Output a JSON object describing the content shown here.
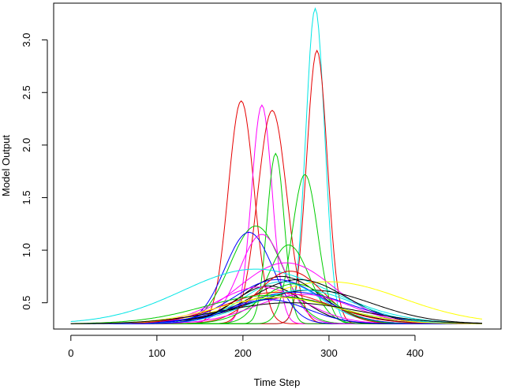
{
  "chart_data": {
    "type": "line",
    "title": "",
    "xlabel": "Time Step",
    "ylabel": "Model Output",
    "xlim": [
      -20,
      500
    ],
    "ylim": [
      0.25,
      3.35
    ],
    "xticks": [
      0,
      100,
      200,
      300,
      400
    ],
    "yticks": [
      0.5,
      1.0,
      1.5,
      2.0,
      2.5,
      3.0
    ],
    "xtick_labels": [
      "0",
      "100",
      "200",
      "300",
      "400"
    ],
    "ytick_labels": [
      "0.5",
      "1.0",
      "1.5",
      "2.0",
      "2.5",
      "3.0"
    ],
    "grid": false,
    "legend": "none",
    "x_range": [
      0,
      479
    ],
    "baseline": 0.3,
    "series": [
      {
        "color": "#00e5e5",
        "peak_x": 284,
        "peak_y": 3.3,
        "width": 11
      },
      {
        "color": "#e60000",
        "peak_x": 286,
        "peak_y": 2.9,
        "width": 12
      },
      {
        "color": "#e60000",
        "peak_x": 198,
        "peak_y": 2.42,
        "width": 15
      },
      {
        "color": "#ff00ff",
        "peak_x": 222,
        "peak_y": 2.38,
        "width": 12
      },
      {
        "color": "#e60000",
        "peak_x": 234,
        "peak_y": 2.33,
        "width": 17
      },
      {
        "color": "#00cc00",
        "peak_x": 238,
        "peak_y": 1.92,
        "width": 10
      },
      {
        "color": "#00cc00",
        "peak_x": 272,
        "peak_y": 1.72,
        "width": 15
      },
      {
        "color": "#00cc00",
        "peak_x": 215,
        "peak_y": 1.23,
        "width": 30
      },
      {
        "color": "#0000ff",
        "peak_x": 207,
        "peak_y": 1.17,
        "width": 28
      },
      {
        "color": "#ff00ff",
        "peak_x": 222,
        "peak_y": 1.15,
        "width": 26
      },
      {
        "color": "#00cc00",
        "peak_x": 253,
        "peak_y": 1.05,
        "width": 24
      },
      {
        "color": "#ff00ff",
        "peak_x": 250,
        "peak_y": 0.88,
        "width": 55
      },
      {
        "color": "#00e5e5",
        "peak_x": 215,
        "peak_y": 0.82,
        "width": 85
      },
      {
        "color": "#ffff00",
        "peak_x": 300,
        "peak_y": 0.7,
        "width": 85
      },
      {
        "color": "#000000",
        "peak_x": 245,
        "peak_y": 0.75,
        "width": 45
      },
      {
        "color": "#000000",
        "peak_x": 265,
        "peak_y": 0.72,
        "width": 55
      },
      {
        "color": "#000000",
        "peak_x": 230,
        "peak_y": 0.66,
        "width": 40
      },
      {
        "color": "#000000",
        "peak_x": 280,
        "peak_y": 0.62,
        "width": 70
      },
      {
        "color": "#000000",
        "peak_x": 250,
        "peak_y": 0.55,
        "width": 60
      },
      {
        "color": "#0000ff",
        "peak_x": 240,
        "peak_y": 0.72,
        "width": 50
      },
      {
        "color": "#0000ff",
        "peak_x": 260,
        "peak_y": 0.6,
        "width": 65
      },
      {
        "color": "#00e5e5",
        "peak_x": 245,
        "peak_y": 0.7,
        "width": 45
      },
      {
        "color": "#ff00ff",
        "peak_x": 220,
        "peak_y": 0.65,
        "width": 50
      },
      {
        "color": "#e60000",
        "peak_x": 255,
        "peak_y": 0.8,
        "width": 38
      },
      {
        "color": "#e60000",
        "peak_x": 240,
        "peak_y": 0.6,
        "width": 60
      },
      {
        "color": "#00cc00",
        "peak_x": 260,
        "peak_y": 0.68,
        "width": 40
      },
      {
        "color": "#00cc00",
        "peak_x": 230,
        "peak_y": 0.57,
        "width": 75
      },
      {
        "color": "#ff00ff",
        "peak_x": 270,
        "peak_y": 0.58,
        "width": 55
      },
      {
        "color": "#00e5e5",
        "peak_x": 270,
        "peak_y": 0.62,
        "width": 60
      },
      {
        "color": "#0000ff",
        "peak_x": 230,
        "peak_y": 0.53,
        "width": 45
      },
      {
        "color": "#ffff00",
        "peak_x": 240,
        "peak_y": 0.55,
        "width": 70
      },
      {
        "color": "#000000",
        "peak_x": 255,
        "peak_y": 0.5,
        "width": 80
      }
    ]
  }
}
